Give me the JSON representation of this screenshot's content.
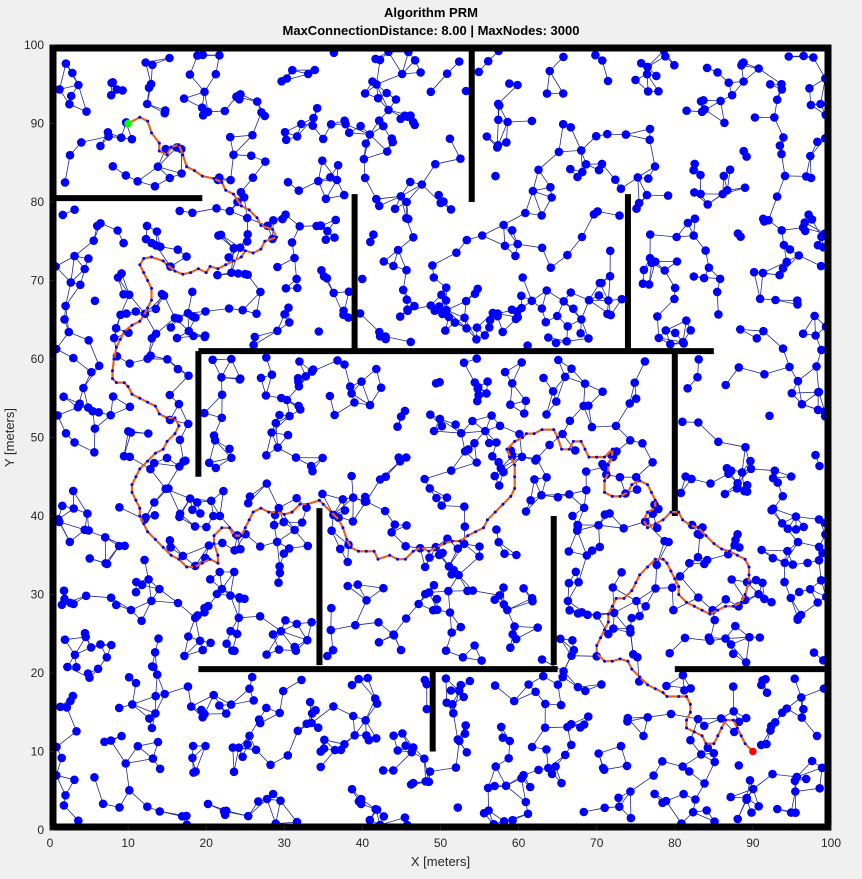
{
  "chart_data": {
    "type": "scatter",
    "title": "Algorithm PRM",
    "subtitle": "MaxConnectionDistance: 8.00 | MaxNodes: 3000",
    "xlabel": "X [meters]",
    "ylabel": "Y [meters]",
    "xlim": [
      0,
      100
    ],
    "ylim": [
      0,
      100
    ],
    "xticks": [
      "0",
      "10",
      "20",
      "30",
      "40",
      "50",
      "60",
      "70",
      "80",
      "90",
      "100"
    ],
    "yticks": [
      "0",
      "10",
      "20",
      "30",
      "40",
      "50",
      "60",
      "70",
      "80",
      "90",
      "100"
    ],
    "grid": false,
    "colors": {
      "background": "#f0f0f0",
      "plot": "#ffffff",
      "node": "#0000ff",
      "edge": "#1f2a8a",
      "wall": "#000000",
      "path": "#e8631c",
      "path_node": "#0000ff",
      "start": "#00ff00",
      "goal": "#ff0000"
    },
    "node_count_hint": 1400,
    "walls": [
      [
        [
          0,
          80.5
        ],
        [
          19.5,
          80.5
        ]
      ],
      [
        [
          54,
          100
        ],
        [
          54,
          80
        ]
      ],
      [
        [
          39,
          81
        ],
        [
          39,
          61
        ]
      ],
      [
        [
          74,
          81
        ],
        [
          74,
          61
        ]
      ],
      [
        [
          19,
          61
        ],
        [
          85,
          61
        ]
      ],
      [
        [
          19,
          61
        ],
        [
          19,
          45
        ]
      ],
      [
        [
          80,
          61
        ],
        [
          80,
          40
        ]
      ],
      [
        [
          34.5,
          41
        ],
        [
          34.5,
          21
        ]
      ],
      [
        [
          64.5,
          40
        ],
        [
          64.5,
          21
        ]
      ],
      [
        [
          19,
          20.5
        ],
        [
          65,
          20.5
        ]
      ],
      [
        [
          49,
          20.5
        ],
        [
          49,
          10
        ]
      ],
      [
        [
          80,
          20.5
        ],
        [
          100,
          20.5
        ]
      ]
    ],
    "path": [
      [
        10,
        90
      ],
      [
        11.5,
        90.8
      ],
      [
        12.5,
        90.3
      ],
      [
        13,
        88.8
      ],
      [
        14,
        87.5
      ],
      [
        14,
        86.5
      ],
      [
        15,
        86
      ],
      [
        15.5,
        87
      ],
      [
        16.5,
        87.3
      ],
      [
        17,
        86
      ],
      [
        17.5,
        84.5
      ],
      [
        18.5,
        84
      ],
      [
        19.5,
        83.3
      ],
      [
        21,
        83
      ],
      [
        22,
        82.5
      ],
      [
        22.5,
        81.5
      ],
      [
        23.5,
        81
      ],
      [
        24.5,
        79.5
      ],
      [
        25.5,
        79
      ],
      [
        26.5,
        78
      ],
      [
        27,
        77
      ],
      [
        28.5,
        76.5
      ],
      [
        29,
        75.5
      ],
      [
        27.5,
        75
      ],
      [
        27,
        74
      ],
      [
        26,
        73.5
      ],
      [
        25,
        73.8
      ],
      [
        24.5,
        73
      ],
      [
        23.5,
        72.5
      ],
      [
        22.5,
        72
      ],
      [
        21.5,
        71.5
      ],
      [
        20.5,
        71.8
      ],
      [
        20,
        71
      ],
      [
        19,
        71.5
      ],
      [
        18,
        71
      ],
      [
        17,
        70.8
      ],
      [
        16,
        71.2
      ],
      [
        15,
        72
      ],
      [
        14.5,
        72.5
      ],
      [
        13,
        73
      ],
      [
        12,
        72.8
      ],
      [
        11.5,
        72
      ],
      [
        12,
        71
      ],
      [
        12.5,
        70
      ],
      [
        13,
        69
      ],
      [
        13,
        67.5
      ],
      [
        12.5,
        66.5
      ],
      [
        12,
        65.5
      ],
      [
        11.5,
        64.8
      ],
      [
        10.5,
        64.3
      ],
      [
        9.5,
        63.5
      ],
      [
        9,
        62.5
      ],
      [
        8.5,
        61.5
      ],
      [
        8.2,
        60
      ],
      [
        8,
        58.5
      ],
      [
        8,
        57.5
      ],
      [
        8.5,
        57
      ],
      [
        9.5,
        57
      ],
      [
        10,
        56.5
      ],
      [
        10.5,
        55.5
      ],
      [
        11.5,
        55
      ],
      [
        12.5,
        54.5
      ],
      [
        13.5,
        54
      ],
      [
        14,
        53
      ],
      [
        15,
        52.5
      ],
      [
        16,
        52.5
      ],
      [
        16.5,
        51.5
      ],
      [
        16,
        50.5
      ],
      [
        15,
        49.5
      ],
      [
        14.5,
        48.5
      ],
      [
        13.5,
        48
      ],
      [
        12.5,
        47
      ],
      [
        11.5,
        46
      ],
      [
        11,
        45
      ],
      [
        10.5,
        44
      ],
      [
        10.5,
        43
      ],
      [
        11,
        42
      ],
      [
        11.5,
        41
      ],
      [
        11.5,
        40
      ],
      [
        12,
        39
      ],
      [
        12.5,
        38
      ],
      [
        13.5,
        37
      ],
      [
        14.5,
        36
      ],
      [
        15.5,
        35
      ],
      [
        16.5,
        34.5
      ],
      [
        17.5,
        33.5
      ],
      [
        18.5,
        33.5
      ],
      [
        19.5,
        34
      ],
      [
        20.5,
        34.5
      ],
      [
        21.5,
        34
      ],
      [
        21.5,
        35
      ],
      [
        21,
        36.5
      ],
      [
        21,
        37.5
      ],
      [
        22,
        38.5
      ],
      [
        23,
        38.5
      ],
      [
        23.5,
        37.5
      ],
      [
        24.5,
        37.5
      ],
      [
        25,
        38.5
      ],
      [
        25.5,
        39.5
      ],
      [
        26,
        40.5
      ],
      [
        27,
        41
      ],
      [
        28,
        40.5
      ],
      [
        29,
        40.5
      ],
      [
        30,
        40.2
      ],
      [
        31,
        40.5
      ],
      [
        32,
        41.5
      ],
      [
        33,
        41.5
      ],
      [
        34.5,
        42
      ],
      [
        35,
        41.5
      ],
      [
        36,
        40.5
      ],
      [
        37,
        39.5
      ],
      [
        37.5,
        38.5
      ],
      [
        38,
        37
      ],
      [
        38.5,
        36
      ],
      [
        39.5,
        35.5
      ],
      [
        40.5,
        35.5
      ],
      [
        41.5,
        35.5
      ],
      [
        42,
        34.5
      ],
      [
        43.5,
        35
      ],
      [
        44.5,
        34.5
      ],
      [
        45.5,
        34.5
      ],
      [
        46.5,
        35.5
      ],
      [
        47.5,
        36
      ],
      [
        48.5,
        35.5
      ],
      [
        49.5,
        36
      ],
      [
        50.5,
        36.5
      ],
      [
        51.5,
        36.8
      ],
      [
        52.5,
        36.8
      ],
      [
        53.5,
        37.5
      ],
      [
        54.5,
        38
      ],
      [
        55.5,
        38.5
      ],
      [
        56,
        39.5
      ],
      [
        57,
        40.5
      ],
      [
        58,
        41.5
      ],
      [
        59,
        42.5
      ],
      [
        59.5,
        43.5
      ],
      [
        59.5,
        45
      ],
      [
        59.5,
        46.5
      ],
      [
        59,
        47.5
      ],
      [
        58.5,
        48.5
      ],
      [
        59.5,
        49.5
      ],
      [
        60.5,
        50
      ],
      [
        61,
        50.5
      ],
      [
        62,
        50.5
      ],
      [
        63,
        51
      ],
      [
        64.5,
        51
      ],
      [
        65,
        50
      ],
      [
        65.5,
        48.5
      ],
      [
        66.5,
        48.5
      ],
      [
        67,
        49.5
      ],
      [
        68,
        49.5
      ],
      [
        68.5,
        48.5
      ],
      [
        69,
        47.5
      ],
      [
        70,
        47.5
      ],
      [
        71,
        47.5
      ],
      [
        72,
        48.5
      ],
      [
        72,
        47.5
      ],
      [
        71.5,
        46.5
      ],
      [
        71.5,
        45.5
      ],
      [
        71,
        44.5
      ],
      [
        71,
        43
      ],
      [
        72,
        42.5
      ],
      [
        73,
        42.5
      ],
      [
        74,
        43
      ],
      [
        74.5,
        44
      ],
      [
        75.5,
        44.5
      ],
      [
        76.5,
        44
      ],
      [
        77,
        43
      ],
      [
        77.5,
        42
      ],
      [
        77.5,
        41
      ],
      [
        76.5,
        40.5
      ],
      [
        76,
        39.5
      ],
      [
        76.5,
        38.5
      ],
      [
        77.5,
        39
      ],
      [
        78.5,
        39.5
      ],
      [
        79.5,
        40.5
      ],
      [
        80.5,
        40.5
      ],
      [
        81,
        39.5
      ],
      [
        82,
        38.8
      ],
      [
        83,
        38.5
      ],
      [
        84,
        37.5
      ],
      [
        85,
        36.5
      ],
      [
        86,
        35.8
      ],
      [
        87,
        35.5
      ],
      [
        88,
        35
      ],
      [
        89,
        34.5
      ],
      [
        89.5,
        33.5
      ],
      [
        89.5,
        32.5
      ],
      [
        89.5,
        31.5
      ],
      [
        89,
        30
      ],
      [
        88.5,
        29
      ],
      [
        87.5,
        28.5
      ],
      [
        86.5,
        28.5
      ],
      [
        85.5,
        28
      ],
      [
        84.5,
        27.5
      ],
      [
        83.5,
        28
      ],
      [
        82.5,
        28.5
      ],
      [
        81.5,
        29
      ],
      [
        80.5,
        30
      ],
      [
        80.5,
        31
      ],
      [
        80,
        32
      ],
      [
        79.5,
        33
      ],
      [
        79,
        34
      ],
      [
        78.5,
        34.5
      ],
      [
        77.5,
        34.5
      ],
      [
        76.5,
        33.5
      ],
      [
        75.5,
        32.5
      ],
      [
        75,
        31.5
      ],
      [
        74.5,
        30.5
      ],
      [
        73.5,
        29.5
      ],
      [
        72.5,
        29.5
      ],
      [
        72,
        28.5
      ],
      [
        71.5,
        27.5
      ],
      [
        71.5,
        26.5
      ],
      [
        71,
        25.5
      ],
      [
        70.5,
        24.5
      ],
      [
        70,
        23.5
      ],
      [
        70,
        22.5
      ],
      [
        71,
        21.5
      ],
      [
        72,
        21.5
      ],
      [
        73,
        21.8
      ],
      [
        74,
        21.5
      ],
      [
        74.5,
        20.5
      ],
      [
        75.5,
        19.5
      ],
      [
        76.5,
        18.5
      ],
      [
        77.5,
        18
      ],
      [
        78.5,
        17.5
      ],
      [
        79,
        17
      ],
      [
        80.5,
        17
      ],
      [
        81.5,
        17
      ],
      [
        82,
        16
      ],
      [
        82,
        15
      ],
      [
        81.5,
        14
      ],
      [
        81.5,
        13
      ],
      [
        82.5,
        12.5
      ],
      [
        83.5,
        12
      ],
      [
        84,
        11
      ],
      [
        85,
        11
      ],
      [
        85.5,
        12
      ],
      [
        86,
        13
      ],
      [
        86.5,
        14
      ],
      [
        87.5,
        14
      ],
      [
        88,
        13
      ],
      [
        88.5,
        12
      ],
      [
        89,
        11
      ],
      [
        90,
        10
      ]
    ],
    "start": [
      10,
      90
    ],
    "goal": [
      90,
      10
    ]
  }
}
